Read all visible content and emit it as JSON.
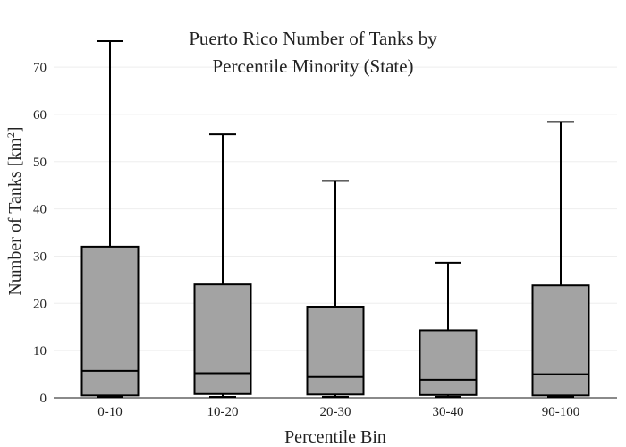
{
  "chart_data": {
    "type": "box",
    "title_lines": [
      "Puerto Rico Number of Tanks by",
      "Percentile Minority (State)"
    ],
    "xlabel": "Percentile Bin",
    "ylabel_main": "Number of Tanks  [km",
    "ylabel_sup": "2",
    "ylabel_end": "]",
    "ylim": [
      0,
      75.5
    ],
    "yticks": [
      0,
      10,
      20,
      30,
      40,
      50,
      60,
      70
    ],
    "grid": true,
    "categories": [
      "0-10",
      "10-20",
      "20-30",
      "30-40",
      "90-100"
    ],
    "boxes": [
      {
        "label": "0-10",
        "min": 0.2,
        "q1": 0.5,
        "median": 5.7,
        "q3": 32.0,
        "max": 75.5
      },
      {
        "label": "10-20",
        "min": 0.2,
        "q1": 0.8,
        "median": 5.2,
        "q3": 24.0,
        "max": 55.8
      },
      {
        "label": "20-30",
        "min": 0.2,
        "q1": 0.7,
        "median": 4.4,
        "q3": 19.3,
        "max": 45.9
      },
      {
        "label": "30-40",
        "min": 0.2,
        "q1": 0.6,
        "median": 3.8,
        "q3": 14.3,
        "max": 28.6
      },
      {
        "label": "90-100",
        "min": 0.2,
        "q1": 0.5,
        "median": 5.0,
        "q3": 23.8,
        "max": 58.4
      }
    ],
    "colors": {
      "box_fill": "#a3a3a3",
      "stroke": "#000000",
      "grid": "#eeeeee",
      "text": "#222222"
    }
  }
}
